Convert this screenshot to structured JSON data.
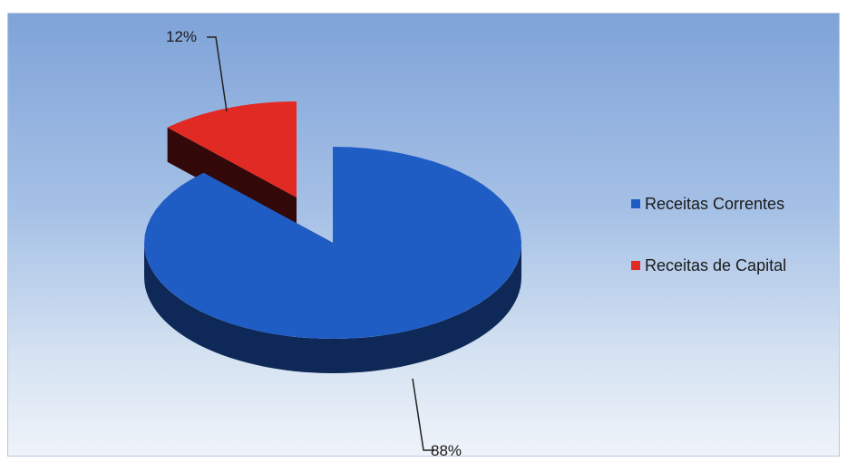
{
  "chart_data": {
    "type": "pie",
    "style": "3d-exploded",
    "series": [
      {
        "name": "Receitas Correntes",
        "value": 88,
        "label": "88%",
        "color": "#1f5cc4"
      },
      {
        "name": "Receitas de Capital",
        "value": 12,
        "label": "12%",
        "color": "#e22a24"
      }
    ],
    "legend_position": "right",
    "background": "#a6c1e6"
  }
}
